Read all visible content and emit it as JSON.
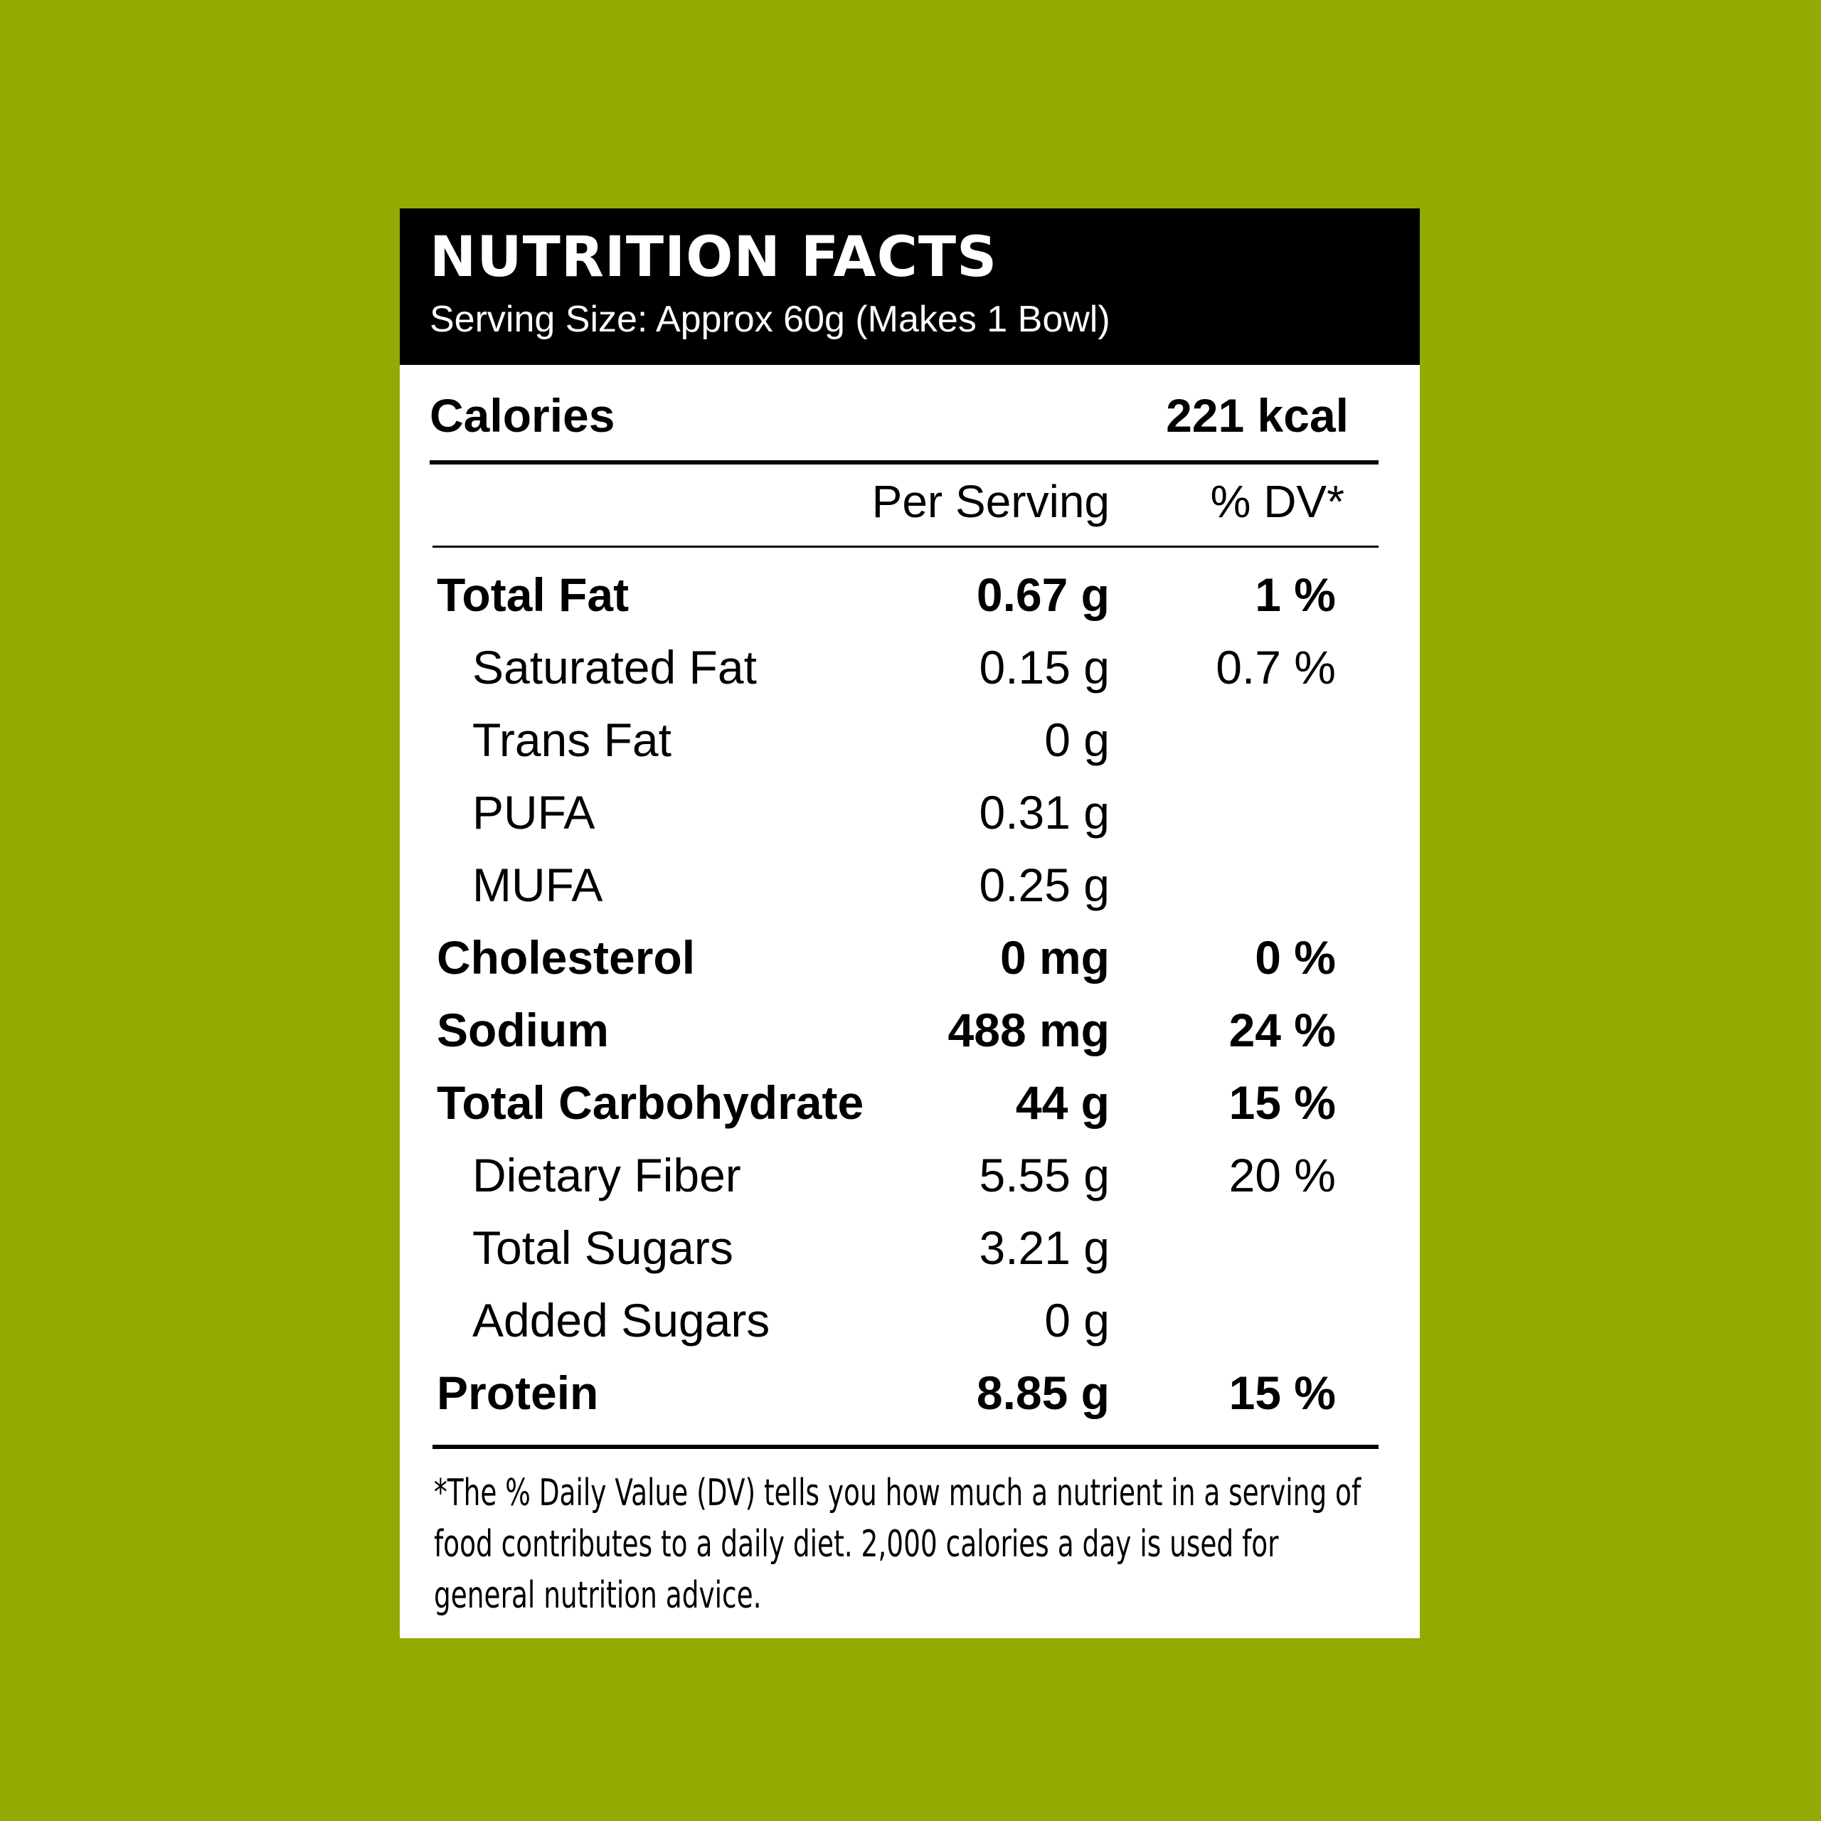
{
  "label": {
    "title": "NUTRITION FACTS",
    "serving_size": "Serving Size: Approx 60g (Makes 1 Bowl)",
    "calories_label": "Calories",
    "calories_value": "221 kcal",
    "column_per_serving": "Per Serving",
    "column_dv": "% DV*",
    "rows": [
      {
        "name": "Total Fat",
        "amount": "0.67 g",
        "dv": "1 %"
      },
      {
        "name": "Saturated Fat",
        "amount": "0.15 g",
        "dv": "0.7 %"
      },
      {
        "name": "Trans Fat",
        "amount": "0 g",
        "dv": ""
      },
      {
        "name": "PUFA",
        "amount": "0.31 g",
        "dv": ""
      },
      {
        "name": "MUFA",
        "amount": "0.25 g",
        "dv": ""
      },
      {
        "name": "Cholesterol",
        "amount": "0 mg",
        "dv": "0 %"
      },
      {
        "name": "Sodium",
        "amount": "488 mg",
        "dv": "24 %"
      },
      {
        "name": "Total Carbohydrate",
        "amount": "44 g",
        "dv": "15 %"
      },
      {
        "name": "Dietary Fiber",
        "amount": "5.55 g",
        "dv": "20 %"
      },
      {
        "name": "Total Sugars",
        "amount": "3.21 g",
        "dv": ""
      },
      {
        "name": "Added Sugars",
        "amount": "0 g",
        "dv": ""
      },
      {
        "name": "Protein",
        "amount": "8.85 g",
        "dv": "15 %"
      }
    ],
    "footnote": "*The % Daily Value (DV) tells you how much a nutrient in a serving of food contributes to a daily diet. 2,000 calories a day is used for general nutrition advice."
  },
  "colors": {
    "background": "#93aa02",
    "header": "#000000",
    "panel": "#ffffff"
  }
}
